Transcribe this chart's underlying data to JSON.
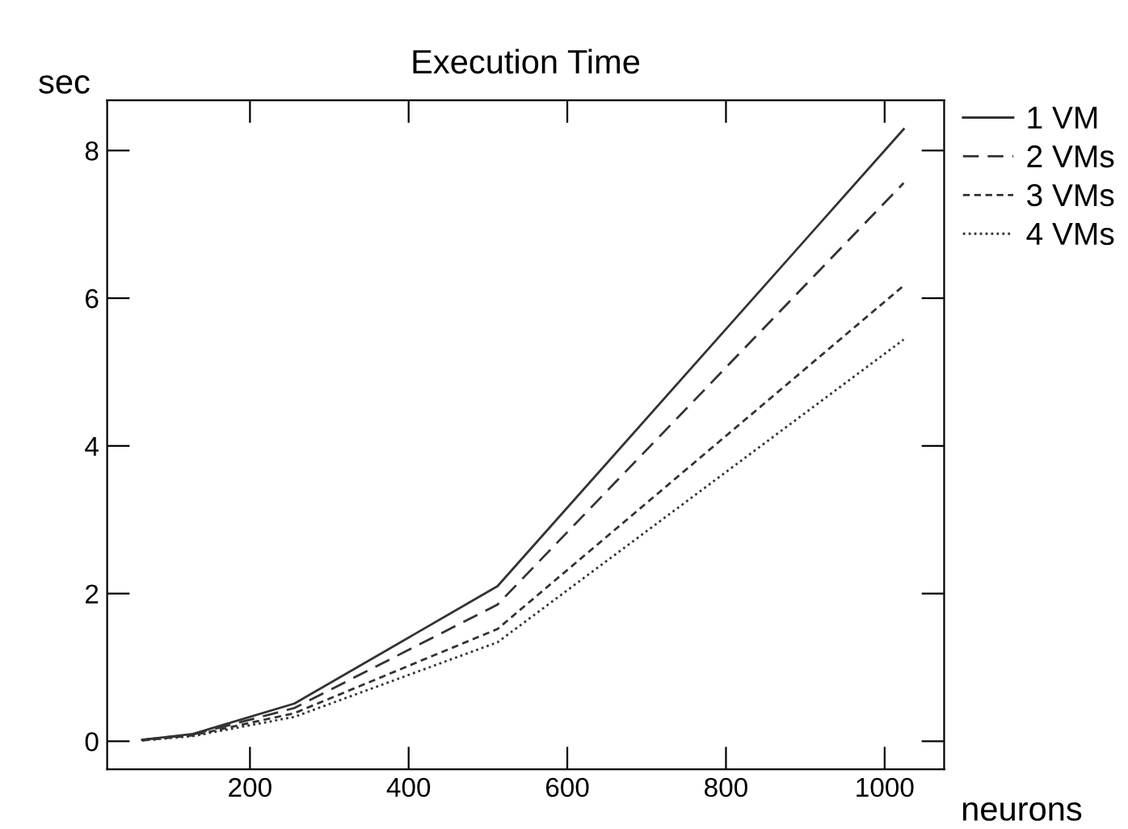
{
  "chart_data": {
    "type": "line",
    "title": "Execution Time",
    "xlabel": "neurons",
    "ylabel": "sec",
    "x": [
      64,
      128,
      256,
      512,
      1024
    ],
    "series": [
      {
        "name": "1 VM",
        "color": "#333333",
        "line_style": "solid",
        "values": [
          0.02,
          0.1,
          0.51,
          2.1,
          8.29
        ]
      },
      {
        "name": "2 VMs",
        "color": "#333333",
        "line_style": "dashed",
        "values": [
          0.02,
          0.09,
          0.45,
          1.85,
          7.56
        ]
      },
      {
        "name": "3 VMs",
        "color": "#333333",
        "line_style": "densely dashed",
        "values": [
          0.01,
          0.08,
          0.38,
          1.52,
          6.17
        ]
      },
      {
        "name": "4 VMs",
        "color": "#333333",
        "line_style": "dotted",
        "values": [
          0.01,
          0.07,
          0.33,
          1.34,
          5.44
        ]
      }
    ],
    "xlim": [
      20,
      1075
    ],
    "ylim": [
      -0.38,
      8.68
    ],
    "xticks": [
      200,
      400,
      600,
      800,
      1000
    ],
    "yticks": [
      0,
      2,
      4,
      6,
      8
    ],
    "grid": false,
    "legend": "top right"
  }
}
